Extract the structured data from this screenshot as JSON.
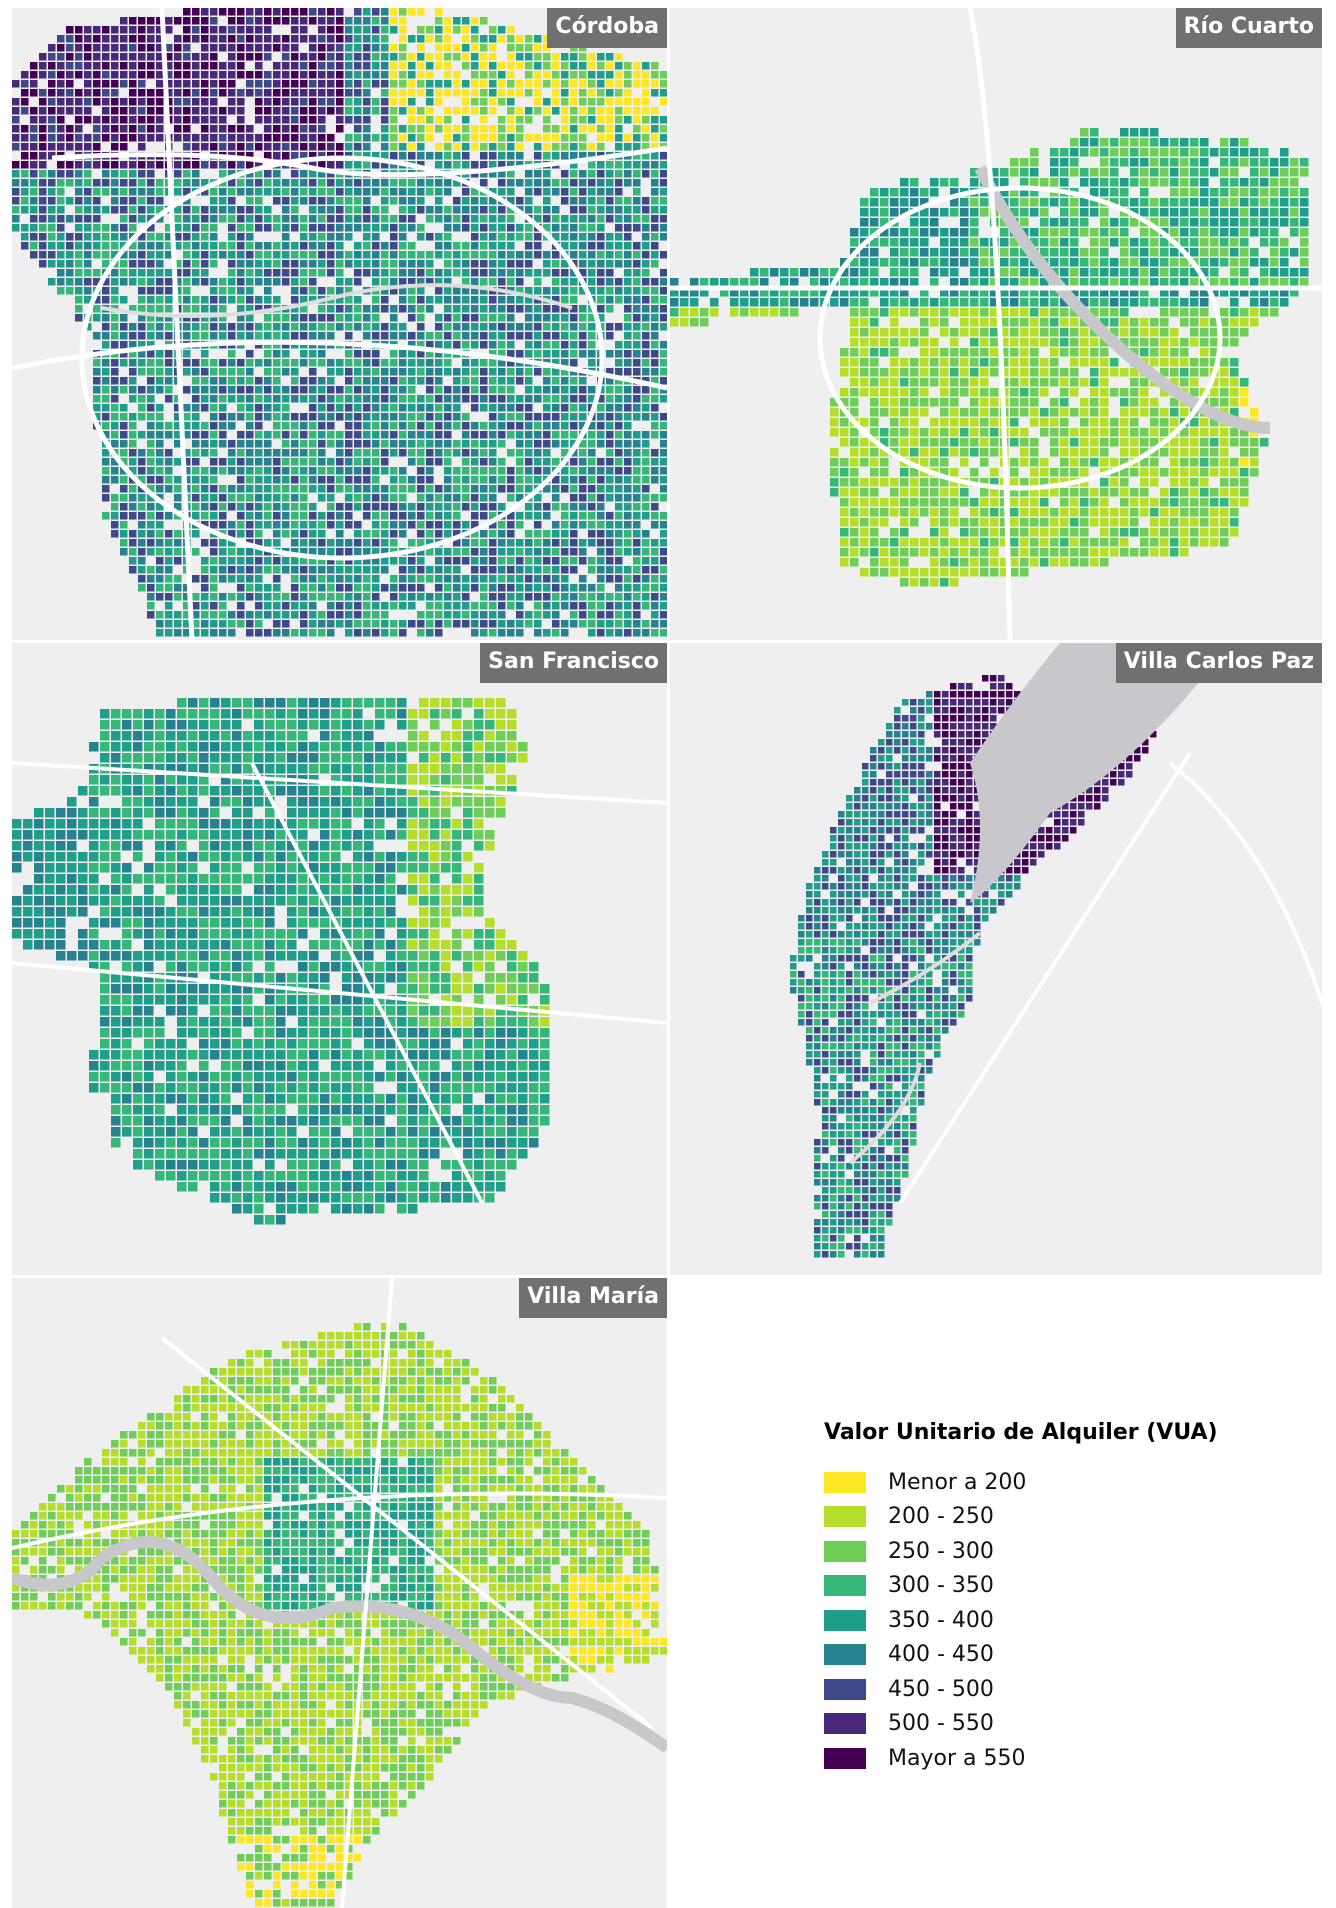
{
  "palette": [
    "#fde725",
    "#b5de2b",
    "#6ece58",
    "#35b779",
    "#1f9e89",
    "#26828e",
    "#3e4989",
    "#482878",
    "#440154"
  ],
  "road_color": "#ffffff",
  "water_color": "#c8c8cc",
  "panels": [
    {
      "name": "Córdoba"
    },
    {
      "name": "Río Cuarto"
    },
    {
      "name": "San Francisco"
    },
    {
      "name": "Villa Carlos Paz"
    },
    {
      "name": "Villa María"
    }
  ],
  "legend": {
    "title": "Valor Unitario de Alquiler (VUA)",
    "items": [
      {
        "label": "Menor a 200",
        "color": "#fde725"
      },
      {
        "label": "200 - 250",
        "color": "#b5de2b"
      },
      {
        "label": "250 - 300",
        "color": "#6ece58"
      },
      {
        "label": "300 - 350",
        "color": "#35b779"
      },
      {
        "label": "350 - 400",
        "color": "#1f9e89"
      },
      {
        "label": "400 - 450",
        "color": "#26828e"
      },
      {
        "label": "450 - 500",
        "color": "#3e4989"
      },
      {
        "label": "500 - 550",
        "color": "#482878"
      },
      {
        "label": "Mayor a 550",
        "color": "#440154"
      }
    ]
  }
}
